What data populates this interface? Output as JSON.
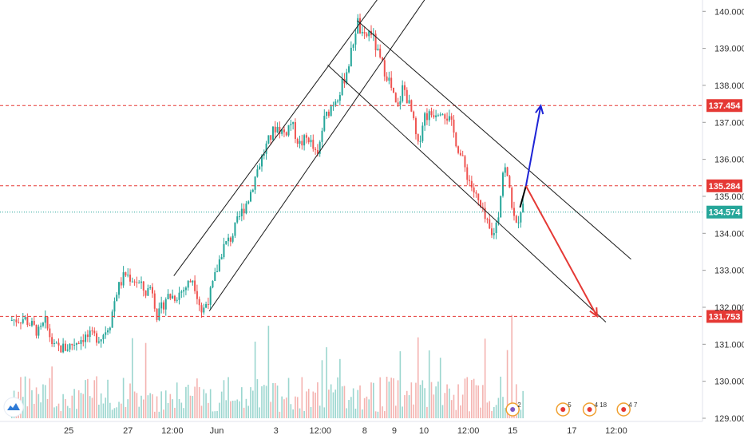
{
  "chart_data": {
    "type": "candlestick",
    "title": "",
    "colors": {
      "up": "#26a69a",
      "down": "#ef5350",
      "channel": "#1a1a1a",
      "level_line": "#e53935",
      "level_badge": "#e53935",
      "current_line": "#26a69a",
      "current_badge": "#26a69a",
      "arrow_up": "#1e24d6",
      "arrow_down": "#e53935",
      "volume_up": "#9bd6cf",
      "volume_down": "#f4b3b0",
      "axis_text": "#333333"
    },
    "y_axis": {
      "min": 129.0,
      "max": 140.2,
      "ticks": [
        "140.000",
        "139.000",
        "138.000",
        "137.000",
        "136.000",
        "135.000",
        "134.000",
        "133.000",
        "132.000",
        "131.000",
        "130.000",
        "129.000"
      ]
    },
    "x_axis": {
      "ticks": [
        {
          "label": "25",
          "t": 2.0
        },
        {
          "label": "27",
          "t": 4.0
        },
        {
          "label": "12:00",
          "t": 5.5
        },
        {
          "label": "Jun",
          "t": 7.0
        },
        {
          "label": "3",
          "t": 9.0
        },
        {
          "label": "12:00",
          "t": 10.5
        },
        {
          "label": "8",
          "t": 12.0
        },
        {
          "label": "9",
          "t": 13.0
        },
        {
          "label": "10",
          "t": 14.0
        },
        {
          "label": "12:00",
          "t": 15.5
        },
        {
          "label": "15",
          "t": 17.0
        },
        {
          "label": "17",
          "t": 19.0
        },
        {
          "label": "12:00",
          "t": 20.5
        }
      ]
    },
    "price_path": [
      [
        0.0,
        131.65
      ],
      [
        0.5,
        131.7
      ],
      [
        1.0,
        131.3
      ],
      [
        1.2,
        131.6
      ],
      [
        1.5,
        130.9
      ],
      [
        1.9,
        130.9
      ],
      [
        2.5,
        131.2
      ],
      [
        3.1,
        131.2
      ],
      [
        3.4,
        131.6
      ],
      [
        3.6,
        132.4
      ],
      [
        3.9,
        132.9
      ],
      [
        4.3,
        132.7
      ],
      [
        4.6,
        132.4
      ],
      [
        4.8,
        132.6
      ],
      [
        5.0,
        131.7
      ],
      [
        5.3,
        132.3
      ],
      [
        5.6,
        132.3
      ],
      [
        5.9,
        132.5
      ],
      [
        6.2,
        132.8
      ],
      [
        6.5,
        131.85
      ],
      [
        6.8,
        132.4
      ],
      [
        7.0,
        133.0
      ],
      [
        7.2,
        133.6
      ],
      [
        7.5,
        133.9
      ],
      [
        7.8,
        134.5
      ],
      [
        8.1,
        135.0
      ],
      [
        8.4,
        135.8
      ],
      [
        8.7,
        136.4
      ],
      [
        9.0,
        136.9
      ],
      [
        9.3,
        136.7
      ],
      [
        9.5,
        137.0
      ],
      [
        9.8,
        136.4
      ],
      [
        10.1,
        136.6
      ],
      [
        10.4,
        136.0
      ],
      [
        10.6,
        137.0
      ],
      [
        10.9,
        137.5
      ],
      [
        11.2,
        137.9
      ],
      [
        11.5,
        138.7
      ],
      [
        11.75,
        139.75
      ],
      [
        11.95,
        139.2
      ],
      [
        12.2,
        139.5
      ],
      [
        12.5,
        138.7
      ],
      [
        12.8,
        138.2
      ],
      [
        13.1,
        137.3
      ],
      [
        13.3,
        138.0
      ],
      [
        13.6,
        137.2
      ],
      [
        13.8,
        136.3
      ],
      [
        14.0,
        137.2
      ],
      [
        14.2,
        137.2
      ],
      [
        14.6,
        137.4
      ],
      [
        14.9,
        137.0
      ],
      [
        15.2,
        136.2
      ],
      [
        15.5,
        135.5
      ],
      [
        15.8,
        134.9
      ],
      [
        16.1,
        134.3
      ],
      [
        16.3,
        133.9
      ],
      [
        16.5,
        134.4
      ],
      [
        16.7,
        135.9
      ],
      [
        16.9,
        135.2
      ],
      [
        17.1,
        134.1
      ],
      [
        17.25,
        134.6
      ],
      [
        17.35,
        134.9
      ]
    ],
    "volume_seed": 7,
    "channel_lines": [
      {
        "from": [
          5.55,
          132.85
        ],
        "to": [
          12.5,
          140.4
        ]
      },
      {
        "from": [
          6.75,
          131.9
        ],
        "to": [
          14.1,
          140.4
        ]
      },
      {
        "from": [
          10.75,
          138.55
        ],
        "to": [
          20.15,
          131.6
        ]
      },
      {
        "from": [
          11.75,
          139.75
        ],
        "to": [
          21.0,
          133.3
        ]
      }
    ],
    "projection_arrows": [
      {
        "name": "black",
        "from": [
          17.25,
          134.7
        ],
        "to": [
          17.45,
          135.28
        ]
      },
      {
        "name": "up",
        "from": [
          17.45,
          135.28
        ],
        "to": [
          17.95,
          137.45
        ]
      },
      {
        "name": "down",
        "from": [
          17.45,
          135.28
        ],
        "to": [
          19.85,
          131.76
        ]
      }
    ],
    "levels": [
      {
        "label": "137.454",
        "value": 137.454,
        "style": "red-dashed"
      },
      {
        "label": "135.284",
        "value": 135.284,
        "style": "red-dashed"
      },
      {
        "label": "134.574",
        "value": 134.574,
        "style": "current"
      },
      {
        "label": "131.753",
        "value": 131.753,
        "style": "red-dashed"
      }
    ],
    "event_markers": [
      {
        "icon": "flag-icon",
        "count": "2",
        "t": 17.0
      },
      {
        "icon": "calendar-icon",
        "count": "5",
        "t": 18.7
      },
      {
        "icon": "calendar-icon",
        "count": "4 18",
        "t": 19.6
      },
      {
        "icon": "calendar-icon",
        "count": "4 7",
        "t": 20.75
      }
    ]
  },
  "logo": {
    "icon": "tradingview-cloud-icon",
    "color": "#2f7bd6"
  }
}
